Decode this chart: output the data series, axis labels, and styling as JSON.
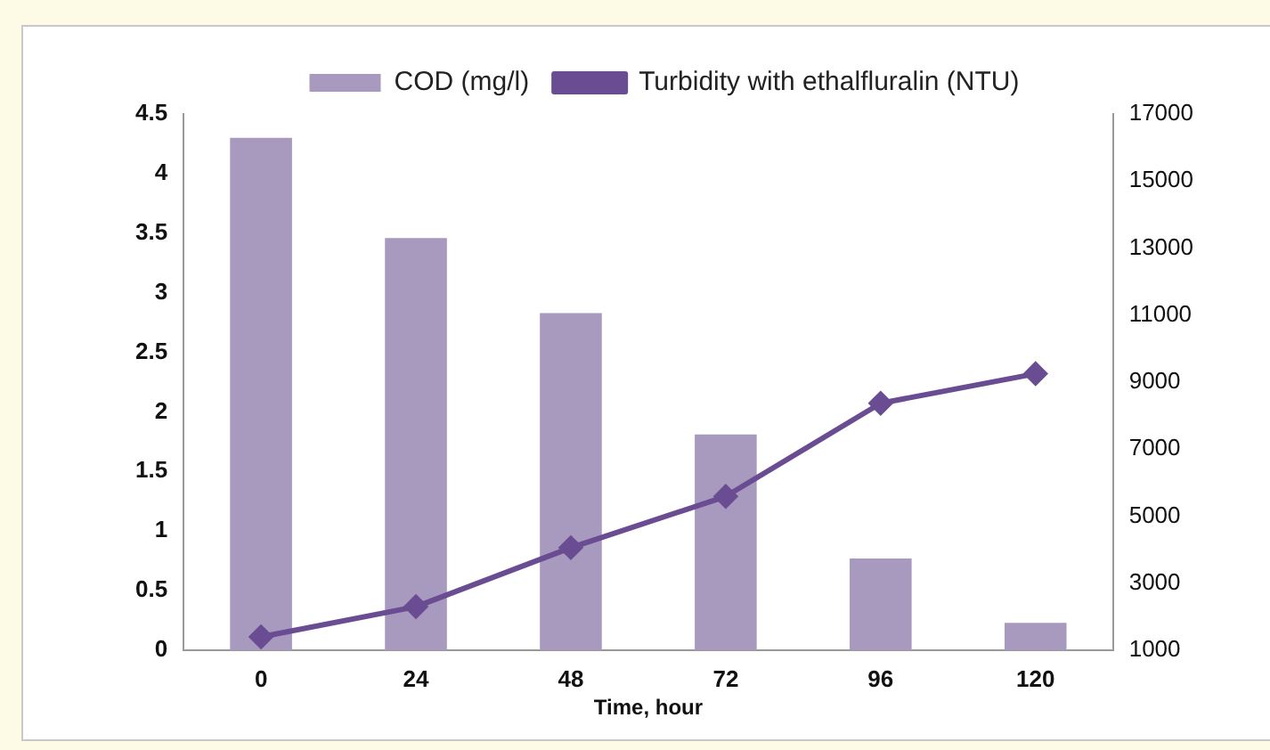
{
  "chart_data": {
    "type": "bar",
    "xlabel": "Time, hour",
    "categories": [
      "0",
      "24",
      "48",
      "72",
      "96",
      "120"
    ],
    "series": [
      {
        "name": "COD (mg/l)",
        "color": "#a899bf",
        "values": [
          4.3,
          3.46,
          2.83,
          1.81,
          0.77,
          0.23
        ]
      },
      {
        "name": "Turbidity with ethalfluralin (NTU)",
        "type": "line",
        "axis": "y2",
        "color": "#6a4c93",
        "marker": "diamond",
        "values": [
          1400,
          2300,
          4060,
          5590,
          8370,
          9250
        ]
      }
    ],
    "ylim": [
      0,
      4.5
    ],
    "yticks": [
      0,
      0.5,
      1,
      1.5,
      2,
      2.5,
      3,
      3.5,
      4,
      4.5
    ],
    "y2lim": [
      1000,
      17000
    ],
    "y2ticks": [
      1000,
      3000,
      5000,
      7000,
      9000,
      11000,
      13000,
      15000,
      17000
    ],
    "grid": false,
    "legend": "top"
  }
}
